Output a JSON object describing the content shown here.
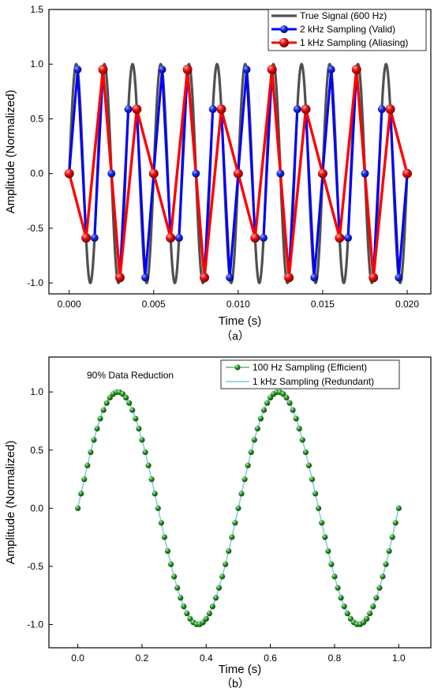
{
  "panels": [
    {
      "caption": "（a）",
      "chart_data": {
        "type": "line",
        "xlabel": "Time (s)",
        "ylabel": "Amplitude (Normalized)",
        "xlim": [
          -0.0012,
          0.0214
        ],
        "ylim": [
          -1.1,
          1.5
        ],
        "xticks": [
          0.0,
          0.005,
          0.01,
          0.015,
          0.02
        ],
        "xtick_labels": [
          "0.000",
          "0.005",
          "0.010",
          "0.015",
          "0.020"
        ],
        "yticks": [
          -1.0,
          -0.5,
          0.0,
          0.5,
          1.0,
          1.5
        ],
        "ytick_labels": [
          "-1.0",
          "-0.5",
          "0.0",
          "0.5",
          "1.0",
          "1.5"
        ],
        "grid": false,
        "legend_position": "top-right",
        "series": [
          {
            "name": "True Signal (600 Hz)",
            "kind": "continuous",
            "function": "sin(2*pi*600*t)",
            "t_range": [
              0,
              0.02
            ],
            "color": "#505050"
          },
          {
            "name": "2 kHz Sampling (Valid)",
            "kind": "sampled",
            "color": "#0000ff",
            "x": [
              0.0,
              0.0005,
              0.001,
              0.0015,
              0.002,
              0.0025,
              0.003,
              0.0035,
              0.004,
              0.0045,
              0.005,
              0.0055,
              0.006,
              0.0065,
              0.007,
              0.0075,
              0.008,
              0.0085,
              0.009,
              0.0095,
              0.01,
              0.0105,
              0.011,
              0.0115,
              0.012,
              0.0125,
              0.013,
              0.0135,
              0.014,
              0.0145,
              0.015,
              0.0155,
              0.016,
              0.0165,
              0.017,
              0.0175,
              0.018,
              0.0185,
              0.019,
              0.0195,
              0.02
            ],
            "y": [
              0.0,
              0.951,
              -0.588,
              -0.588,
              0.951,
              0.0,
              -0.951,
              0.588,
              0.588,
              -0.951,
              0.0,
              0.951,
              -0.588,
              -0.588,
              0.951,
              0.0,
              -0.951,
              0.588,
              0.588,
              -0.951,
              0.0,
              0.951,
              -0.588,
              -0.588,
              0.951,
              0.0,
              -0.951,
              0.588,
              0.588,
              -0.951,
              0.0,
              0.951,
              -0.588,
              -0.588,
              0.951,
              0.0,
              -0.951,
              0.588,
              0.588,
              -0.951,
              0.0
            ]
          },
          {
            "name": "1 kHz Sampling (Aliasing)",
            "kind": "sampled",
            "color": "#ff0000",
            "x": [
              0.0,
              0.001,
              0.002,
              0.003,
              0.004,
              0.005,
              0.006,
              0.007,
              0.008,
              0.009,
              0.01,
              0.011,
              0.012,
              0.013,
              0.014,
              0.015,
              0.016,
              0.017,
              0.018,
              0.019,
              0.02
            ],
            "y": [
              0.0,
              -0.588,
              0.951,
              -0.951,
              0.588,
              0.0,
              -0.588,
              0.951,
              -0.951,
              0.588,
              0.0,
              -0.588,
              0.951,
              -0.951,
              0.588,
              0.0,
              -0.588,
              0.951,
              -0.951,
              0.588,
              0.0
            ]
          }
        ]
      }
    },
    {
      "caption": "（b）",
      "annotation": "90% Data Reduction",
      "chart_data": {
        "type": "line",
        "xlabel": "Time (s)",
        "ylabel": "Amplitude (Normalized)",
        "xlim": [
          -0.09,
          1.1
        ],
        "ylim": [
          -1.2,
          1.3
        ],
        "xticks": [
          0.0,
          0.2,
          0.4,
          0.6,
          0.8,
          1.0
        ],
        "xtick_labels": [
          "0.0",
          "0.2",
          "0.4",
          "0.6",
          "0.8",
          "1.0"
        ],
        "yticks": [
          -1.0,
          -0.5,
          0.0,
          0.5,
          1.0
        ],
        "ytick_labels": [
          "-1.0",
          "-0.5",
          "0.0",
          "0.5",
          "1.0"
        ],
        "grid": false,
        "legend_position": "top-right",
        "series": [
          {
            "name": "100 Hz Sampling (Efficient)",
            "kind": "sampled",
            "function": "sin(2*pi*2*t)",
            "sample_rate_hz": 100,
            "t_range": [
              0,
              1
            ],
            "color": "#1e8c1e"
          },
          {
            "name": "1 kHz Sampling (Redundant)",
            "kind": "continuous",
            "function": "sin(2*pi*2*t)",
            "sample_rate_hz": 1000,
            "t_range": [
              0,
              1
            ],
            "color": "#7ec8e3"
          }
        ]
      }
    }
  ]
}
